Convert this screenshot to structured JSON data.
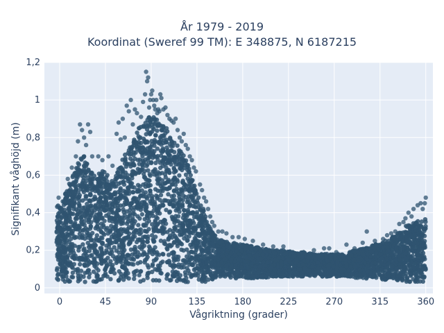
{
  "chart_data": {
    "type": "scatter",
    "title": "År 1979 - 2019",
    "subtitle": "Koordinat (Sweref 99 TM): E 348875, N 6187215",
    "xlabel": "Vågriktning (grader)",
    "ylabel": "Signifikant våghöjd (m)",
    "xlim": [
      -15,
      367
    ],
    "ylim": [
      -0.03,
      1.2
    ],
    "x_ticks": [
      0,
      45,
      90,
      135,
      180,
      225,
      270,
      315,
      360
    ],
    "x_tick_labels": [
      "0",
      "45",
      "90",
      "135",
      "180",
      "225",
      "270",
      "315",
      "360"
    ],
    "y_ticks": [
      0,
      0.2,
      0.4,
      0.6,
      0.8,
      1.0,
      1.2
    ],
    "y_tick_labels": [
      "0",
      "0,2",
      "0,4",
      "0,6",
      "0,8",
      "1",
      "1,2"
    ],
    "grid": true,
    "marker_color": "#2f5470",
    "background": "#e5ecf6",
    "envelope": [
      [
        -3,
        0.03,
        0.44
      ],
      [
        2,
        0.03,
        0.45
      ],
      [
        5,
        0.03,
        0.5
      ],
      [
        10,
        0.03,
        0.56
      ],
      [
        15,
        0.03,
        0.62
      ],
      [
        20,
        0.03,
        0.7
      ],
      [
        25,
        0.03,
        0.72
      ],
      [
        30,
        0.03,
        0.63
      ],
      [
        35,
        0.03,
        0.6
      ],
      [
        40,
        0.03,
        0.64
      ],
      [
        45,
        0.03,
        0.62
      ],
      [
        50,
        0.03,
        0.57
      ],
      [
        55,
        0.03,
        0.6
      ],
      [
        60,
        0.03,
        0.66
      ],
      [
        65,
        0.03,
        0.72
      ],
      [
        70,
        0.03,
        0.76
      ],
      [
        75,
        0.03,
        0.82
      ],
      [
        80,
        0.03,
        0.88
      ],
      [
        85,
        0.03,
        0.9
      ],
      [
        90,
        0.03,
        0.92
      ],
      [
        95,
        0.03,
        0.9
      ],
      [
        100,
        0.03,
        0.88
      ],
      [
        105,
        0.03,
        0.85
      ],
      [
        110,
        0.03,
        0.82
      ],
      [
        115,
        0.03,
        0.78
      ],
      [
        120,
        0.03,
        0.72
      ],
      [
        125,
        0.03,
        0.68
      ],
      [
        130,
        0.03,
        0.6
      ],
      [
        135,
        0.03,
        0.52
      ],
      [
        140,
        0.03,
        0.44
      ],
      [
        145,
        0.03,
        0.36
      ],
      [
        150,
        0.04,
        0.3
      ],
      [
        155,
        0.05,
        0.27
      ],
      [
        160,
        0.05,
        0.25
      ],
      [
        170,
        0.05,
        0.24
      ],
      [
        180,
        0.05,
        0.23
      ],
      [
        190,
        0.05,
        0.22
      ],
      [
        200,
        0.05,
        0.21
      ],
      [
        210,
        0.06,
        0.2
      ],
      [
        220,
        0.06,
        0.2
      ],
      [
        230,
        0.06,
        0.19
      ],
      [
        240,
        0.06,
        0.19
      ],
      [
        250,
        0.06,
        0.18
      ],
      [
        260,
        0.06,
        0.18
      ],
      [
        270,
        0.06,
        0.18
      ],
      [
        280,
        0.06,
        0.18
      ],
      [
        290,
        0.05,
        0.2
      ],
      [
        300,
        0.05,
        0.21
      ],
      [
        310,
        0.05,
        0.23
      ],
      [
        320,
        0.04,
        0.25
      ],
      [
        330,
        0.04,
        0.28
      ],
      [
        340,
        0.03,
        0.33
      ],
      [
        350,
        0.03,
        0.35
      ],
      [
        360,
        0.03,
        0.37
      ]
    ],
    "outliers": [
      [
        -1,
        0.48
      ],
      [
        3,
        0.46
      ],
      [
        8,
        0.58
      ],
      [
        12,
        0.64
      ],
      [
        16,
        0.7
      ],
      [
        18,
        0.78
      ],
      [
        20,
        0.87
      ],
      [
        22,
        0.84
      ],
      [
        24,
        0.8
      ],
      [
        26,
        0.76
      ],
      [
        28,
        0.87
      ],
      [
        30,
        0.83
      ],
      [
        32,
        0.7
      ],
      [
        38,
        0.7
      ],
      [
        42,
        0.68
      ],
      [
        48,
        0.7
      ],
      [
        52,
        0.65
      ],
      [
        56,
        0.82
      ],
      [
        58,
        0.88
      ],
      [
        60,
        0.79
      ],
      [
        62,
        0.9
      ],
      [
        64,
        0.8
      ],
      [
        66,
        0.97
      ],
      [
        68,
        0.94
      ],
      [
        70,
        1.0
      ],
      [
        72,
        0.87
      ],
      [
        74,
        0.95
      ],
      [
        76,
        0.93
      ],
      [
        78,
        0.85
      ],
      [
        80,
        0.91
      ],
      [
        82,
        0.99
      ],
      [
        84,
        1.03
      ],
      [
        85,
        1.15
      ],
      [
        86,
        1.1
      ],
      [
        87,
        1.12
      ],
      [
        88,
        0.96
      ],
      [
        89,
        1.0
      ],
      [
        90,
        1.03
      ],
      [
        91,
        1.05
      ],
      [
        92,
        1.0
      ],
      [
        93,
        0.97
      ],
      [
        94,
        0.95
      ],
      [
        95,
        1.0
      ],
      [
        96,
        0.93
      ],
      [
        97,
        0.95
      ],
      [
        98,
        0.94
      ],
      [
        99,
        1.03
      ],
      [
        100,
        1.01
      ],
      [
        102,
        0.95
      ],
      [
        104,
        0.96
      ],
      [
        106,
        0.92
      ],
      [
        108,
        0.9
      ],
      [
        110,
        0.89
      ],
      [
        112,
        0.88
      ],
      [
        114,
        0.9
      ],
      [
        116,
        0.84
      ],
      [
        118,
        0.8
      ],
      [
        120,
        0.78
      ],
      [
        122,
        0.82
      ],
      [
        124,
        0.76
      ],
      [
        126,
        0.74
      ],
      [
        128,
        0.7
      ],
      [
        130,
        0.68
      ],
      [
        132,
        0.64
      ],
      [
        134,
        0.62
      ],
      [
        138,
        0.55
      ],
      [
        140,
        0.52
      ],
      [
        142,
        0.48
      ],
      [
        144,
        0.46
      ],
      [
        146,
        0.42
      ],
      [
        148,
        0.38
      ],
      [
        150,
        0.35
      ],
      [
        152,
        0.33
      ],
      [
        156,
        0.3
      ],
      [
        160,
        0.3
      ],
      [
        164,
        0.29
      ],
      [
        170,
        0.27
      ],
      [
        176,
        0.27
      ],
      [
        182,
        0.26
      ],
      [
        190,
        0.25
      ],
      [
        200,
        0.23
      ],
      [
        210,
        0.22
      ],
      [
        220,
        0.22
      ],
      [
        250,
        0.2
      ],
      [
        260,
        0.21
      ],
      [
        265,
        0.21
      ],
      [
        272,
        0.19
      ],
      [
        282,
        0.23
      ],
      [
        290,
        0.21
      ],
      [
        298,
        0.24
      ],
      [
        302,
        0.3
      ],
      [
        310,
        0.25
      ],
      [
        318,
        0.26
      ],
      [
        322,
        0.28
      ],
      [
        326,
        0.29
      ],
      [
        330,
        0.3
      ],
      [
        334,
        0.34
      ],
      [
        338,
        0.35
      ],
      [
        340,
        0.37
      ],
      [
        343,
        0.4
      ],
      [
        346,
        0.38
      ],
      [
        348,
        0.42
      ],
      [
        352,
        0.44
      ],
      [
        355,
        0.45
      ],
      [
        357,
        0.42
      ],
      [
        359,
        0.45
      ],
      [
        360,
        0.48
      ]
    ]
  }
}
